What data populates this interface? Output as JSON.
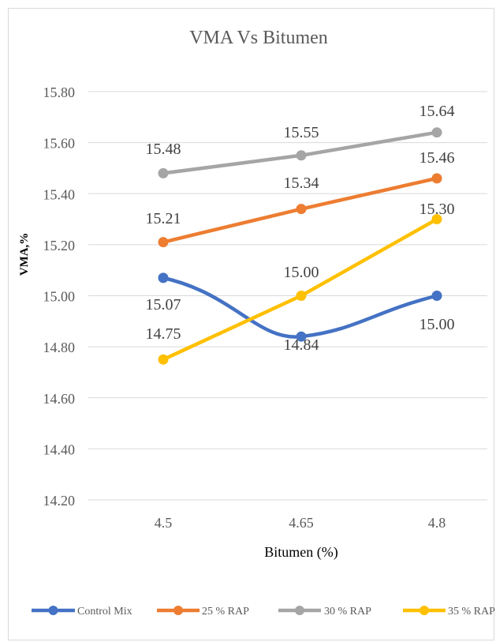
{
  "chart_data": {
    "type": "line",
    "title": "VMA Vs Bitumen",
    "xlabel": "Bitumen (%)",
    "ylabel": "VMA,%",
    "categories": [
      "4.5",
      "4.65",
      "4.8"
    ],
    "ylim": [
      14.2,
      15.8
    ],
    "yticks": [
      "14.20",
      "14.40",
      "14.60",
      "14.80",
      "15.00",
      "15.20",
      "15.40",
      "15.60",
      "15.80"
    ],
    "grid": true,
    "legend_position": "bottom",
    "series": [
      {
        "name": "Control Mix",
        "color": "#4472c4",
        "values": [
          15.07,
          14.84,
          15.0
        ],
        "labels": [
          "15.07",
          "14.84",
          "15.00"
        ]
      },
      {
        "name": "25 % RAP",
        "color": "#ed7d31",
        "values": [
          15.21,
          15.34,
          15.46
        ],
        "labels": [
          "15.21",
          "15.34",
          "15.46"
        ]
      },
      {
        "name": "30 % RAP",
        "color": "#a5a5a5",
        "values": [
          15.48,
          15.55,
          15.64
        ],
        "labels": [
          "15.48",
          "15.55",
          "15.64"
        ]
      },
      {
        "name": "35 % RAP",
        "color": "#ffc000",
        "values": [
          14.75,
          15.0,
          15.3
        ],
        "labels": [
          "14.75",
          "15.00",
          "15.30"
        ]
      }
    ]
  }
}
